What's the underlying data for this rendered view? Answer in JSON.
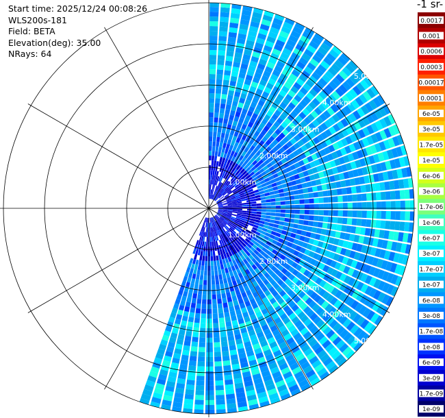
{
  "info": {
    "start_time": "Start time: 2025/12/24 00:08:26",
    "instrument": "WLS200s-181",
    "field": "Field: BETA",
    "elevation": "Elevation(deg): 35.00",
    "nrays": "NRays: 64"
  },
  "colorbar": {
    "title_fragment": "-1 sr-",
    "levels": [
      {
        "label": "0.0017",
        "color": "#8b0000"
      },
      {
        "label": "0.001",
        "color": "#b00000"
      },
      {
        "label": "0.0006",
        "color": "#dc0000"
      },
      {
        "label": "0.0003",
        "color": "#ff2000"
      },
      {
        "label": "0.00017",
        "color": "#ff5500"
      },
      {
        "label": "0.0001",
        "color": "#ff7f00"
      },
      {
        "label": "6e-05",
        "color": "#ffa500"
      },
      {
        "label": "3e-05",
        "color": "#ffc800"
      },
      {
        "label": "1.7e-05",
        "color": "#ffe600"
      },
      {
        "label": "1e-05",
        "color": "#ffff00"
      },
      {
        "label": "6e-06",
        "color": "#d4ff1a"
      },
      {
        "label": "3e-06",
        "color": "#a8ff40"
      },
      {
        "label": "1.7e-06",
        "color": "#7cff7a"
      },
      {
        "label": "1e-06",
        "color": "#40ffbf"
      },
      {
        "label": "6e-07",
        "color": "#1affe6"
      },
      {
        "label": "3e-07",
        "color": "#00f0ff"
      },
      {
        "label": "1.7e-07",
        "color": "#00cfff"
      },
      {
        "label": "1e-07",
        "color": "#00aeef"
      },
      {
        "label": "6e-08",
        "color": "#0096ff"
      },
      {
        "label": "3e-08",
        "color": "#0078ff"
      },
      {
        "label": "1.7e-08",
        "color": "#0055ff"
      },
      {
        "label": "1e-08",
        "color": "#0032ff"
      },
      {
        "label": "6e-09",
        "color": "#0010f0"
      },
      {
        "label": "3e-09",
        "color": "#0000d0"
      },
      {
        "label": "1.7e-09",
        "color": "#0000a0"
      },
      {
        "label": "1e-09",
        "color": "#00006a"
      }
    ]
  },
  "chart_data": {
    "type": "polar-ppi",
    "field": "BETA",
    "elevation_deg": 35.0,
    "nrays": 64,
    "sector_deg": [
      0,
      200
    ],
    "range_km": [
      0,
      5.0
    ],
    "range_rings_km": [
      1.0,
      2.0,
      3.0,
      4.0,
      5.0
    ],
    "ring_labels": [
      "1.00km",
      "2.00km",
      "3.00km",
      "4.00km",
      "5.00km"
    ],
    "colors": {
      "background_blue": "#1a80e6",
      "grid": "#000000",
      "ring_label": "#ffffff"
    },
    "profile": [
      {
        "range_km": 0.5,
        "typical": "3e-09"
      },
      {
        "range_km": 1.5,
        "typical": "3e-08"
      },
      {
        "range_km": 3.0,
        "typical": "6e-08"
      },
      {
        "range_km": 4.5,
        "typical": "1.7e-07"
      }
    ]
  }
}
